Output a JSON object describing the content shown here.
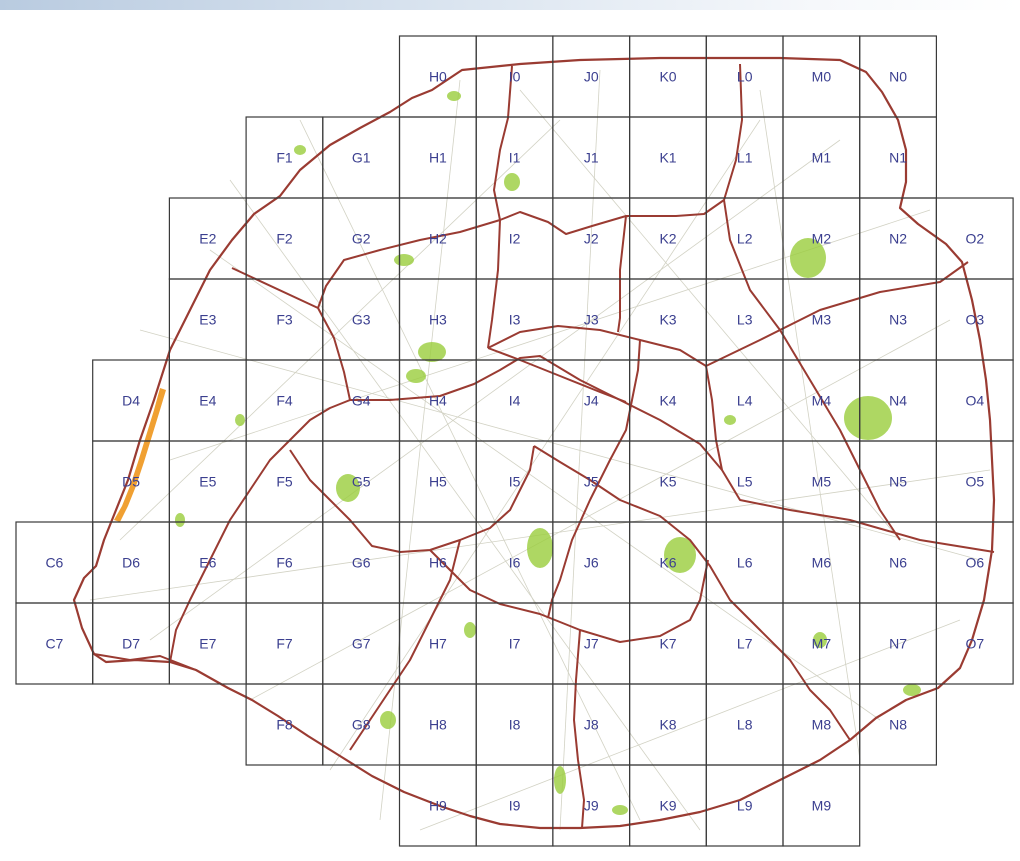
{
  "map": {
    "colors": {
      "grid_line": "#3a3a3a",
      "label": "#3b3f8f",
      "boundary": "#9a3b32",
      "green_space": "#9acd3c",
      "highlight_orange": "#f0a032",
      "background": "#ffffff"
    },
    "grid": {
      "columns": [
        "C",
        "D",
        "E",
        "F",
        "G",
        "H",
        "I",
        "J",
        "K",
        "L",
        "M",
        "N",
        "O"
      ],
      "rows": [
        [
          "H0",
          "I0",
          "J0",
          "K0",
          "L0",
          "M0",
          "N0"
        ],
        [
          "F1",
          "G1",
          "H1",
          "I1",
          "J1",
          "K1",
          "L1",
          "M1",
          "N1"
        ],
        [
          "E2",
          "F2",
          "G2",
          "H2",
          "I2",
          "J2",
          "K2",
          "L2",
          "M2",
          "N2",
          "O2"
        ],
        [
          "E3",
          "F3",
          "G3",
          "H3",
          "I3",
          "J3",
          "K3",
          "L3",
          "M3",
          "N3",
          "O3"
        ],
        [
          "D4",
          "E4",
          "F4",
          "G4",
          "H4",
          "I4",
          "J4",
          "K4",
          "L4",
          "M4",
          "N4",
          "O4"
        ],
        [
          "D5",
          "E5",
          "F5",
          "G5",
          "H5",
          "I5",
          "J5",
          "K5",
          "L5",
          "M5",
          "N5",
          "O5"
        ],
        [
          "C6",
          "D6",
          "E6",
          "F6",
          "G6",
          "H6",
          "I6",
          "J6",
          "K6",
          "L6",
          "M6",
          "N6",
          "O6"
        ],
        [
          "C7",
          "D7",
          "E7",
          "F7",
          "G7",
          "H7",
          "I7",
          "J7",
          "K7",
          "L7",
          "M7",
          "N7",
          "O7"
        ],
        [
          "F8",
          "G8",
          "H8",
          "I8",
          "J8",
          "K8",
          "L8",
          "M8",
          "N8"
        ],
        [
          "H9",
          "I9",
          "J9",
          "K9",
          "L9",
          "M9"
        ]
      ]
    }
  }
}
